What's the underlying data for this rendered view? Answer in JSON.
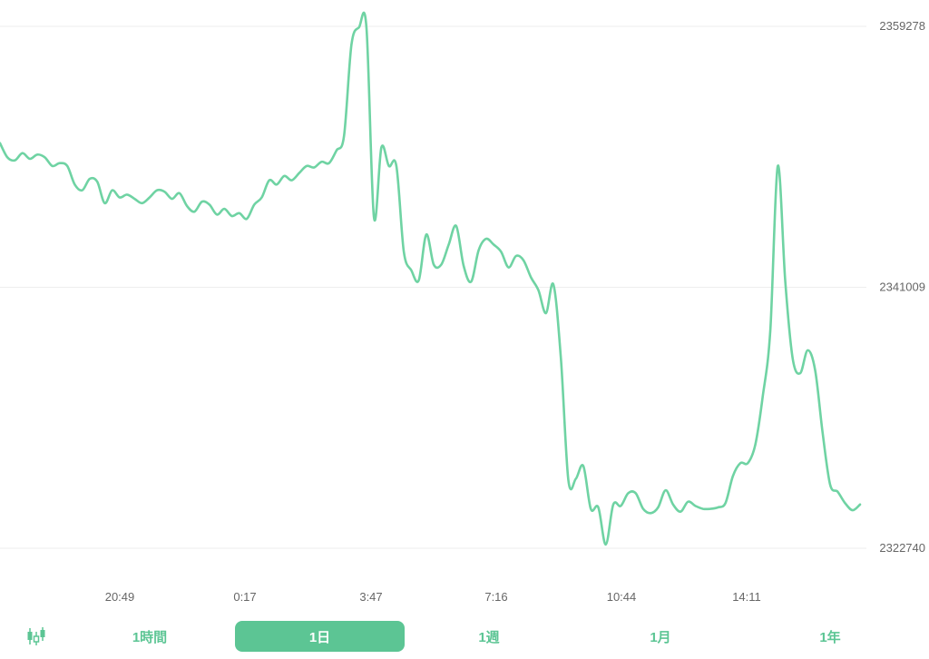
{
  "colors": {
    "accent": "#5cc594",
    "line": "#6fd3a3",
    "grid": "#eeeeee",
    "axis_text": "#666666",
    "background": "#ffffff"
  },
  "icons": {
    "chart_type": "candlestick-icon"
  },
  "tabs": [
    {
      "label": "1時間",
      "active": false
    },
    {
      "label": "1日",
      "active": true
    },
    {
      "label": "1週",
      "active": false
    },
    {
      "label": "1月",
      "active": false
    },
    {
      "label": "1年",
      "active": false
    }
  ],
  "chart_data": {
    "type": "line",
    "y_ticks": [
      2359278,
      2341009,
      2322740
    ],
    "ylim": [
      2322740,
      2359278
    ],
    "x_tick_labels": [
      "20:49",
      "0:17",
      "3:47",
      "7:16",
      "10:44",
      "14:11"
    ],
    "grid": "horizontal",
    "series": [
      {
        "values": [
          2351100,
          2350100,
          2349900,
          2350400,
          2350000,
          2350300,
          2350100,
          2349500,
          2349700,
          2349500,
          2348200,
          2347800,
          2348600,
          2348400,
          2346900,
          2347800,
          2347300,
          2347500,
          2347200,
          2346900,
          2347300,
          2347800,
          2347700,
          2347200,
          2347600,
          2346700,
          2346300,
          2347000,
          2346800,
          2346100,
          2346500,
          2346000,
          2346200,
          2345800,
          2346800,
          2347300,
          2348500,
          2348200,
          2348800,
          2348500,
          2349000,
          2349500,
          2349400,
          2349800,
          2349700,
          2350600,
          2351600,
          2358000,
          2359200,
          2359200,
          2345900,
          2350800,
          2349500,
          2349500,
          2343500,
          2342200,
          2341500,
          2344700,
          2342600,
          2342600,
          2344000,
          2345300,
          2342500,
          2341400,
          2343600,
          2344400,
          2344000,
          2343500,
          2342400,
          2343200,
          2342900,
          2341700,
          2340800,
          2339200,
          2341200,
          2336000,
          2327500,
          2327600,
          2328500,
          2325500,
          2325600,
          2323000,
          2325800,
          2325700,
          2326600,
          2326600,
          2325500,
          2325200,
          2325600,
          2326800,
          2325800,
          2325300,
          2326000,
          2325700,
          2325500,
          2325500,
          2325600,
          2325900,
          2327800,
          2328700,
          2328700,
          2330000,
          2333400,
          2338000,
          2349500,
          2341400,
          2336000,
          2335000,
          2336600,
          2335200,
          2330800,
          2327200,
          2326700,
          2325900,
          2325400,
          2325800
        ]
      }
    ]
  }
}
